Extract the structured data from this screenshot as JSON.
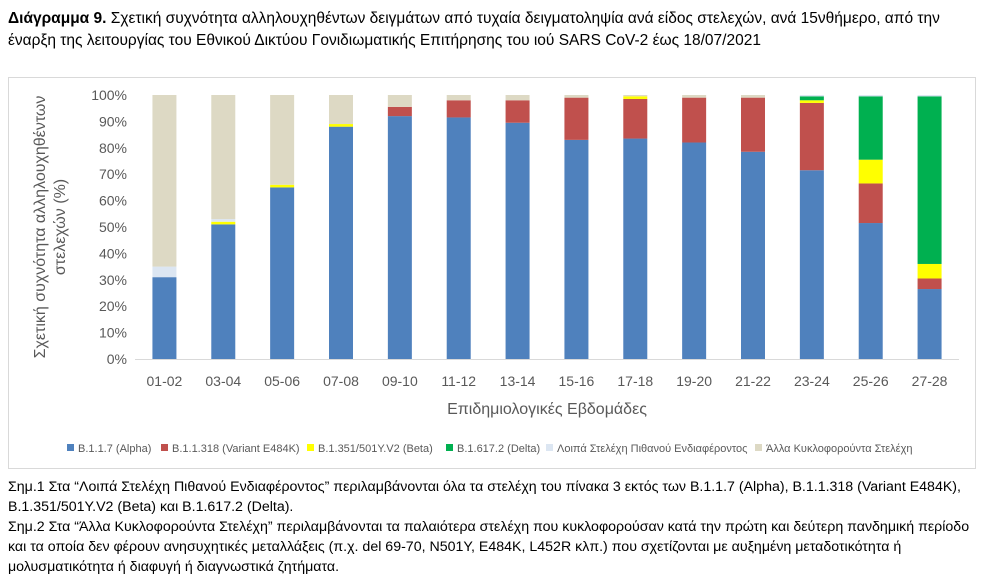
{
  "caption": {
    "label": "Διάγραμμα 9.",
    "text": " Σχετική συχνότητα αλληλουχηθέντων δειγμάτων από τυχαία δειγματοληψία ανά είδος στελεχών, ανά 15νθήμερο, από την έναρξη της λειτουργίας του Εθνικού Δικτύου Γονιδιωματικής Επιτήρησης του ιού SARS CoV-2 έως 18/07/2021"
  },
  "notes": {
    "note1": "Σημ.1 Στα “Λοιπά Στελέχη Πιθανού Ενδιαφέροντος” περιλαμβάνονται όλα τα στελέχη του πίνακα 3 εκτός των B.1.1.7 (Alpha), B.1.1.318 (Variant E484K), B.1.351/501Y.V2 (Beta) και B.1.617.2 (Delta).",
    "note2": "Σημ.2 Στα “Άλλα Κυκλοφορούντα Στελέχη” περιλαμβάνονται τα παλαιότερα στελέχη που κυκλοφορούσαν κατά την πρώτη και δεύτερη πανδημική περίοδο και τα οποία δεν φέρουν ανησυχητικές μεταλλάξεις (π.χ. del 69-70, N501Y, E484K, L452R κλπ.) που σχετίζονται με αυξημένη μεταδοτικότητα ή μολυσματικότητα ή διαφυγή ή διαγνωστικά ζητήματα."
  },
  "chart_data": {
    "type": "bar",
    "stacked": true,
    "xlabel": "Επιδημιολογικές Εβδομάδες",
    "ylabel": "Σχετική συχνότητα αλληλουχηθέντων στελεχών (%)",
    "ylim": [
      0,
      100
    ],
    "yticks": [
      "0%",
      "10%",
      "20%",
      "30%",
      "40%",
      "50%",
      "60%",
      "70%",
      "80%",
      "90%",
      "100%"
    ],
    "grid": false,
    "legend_position": "bottom",
    "categories": [
      "01-02",
      "03-04",
      "05-06",
      "07-08",
      "09-10",
      "11-12",
      "13-14",
      "15-16",
      "17-18",
      "19-20",
      "21-22",
      "23-24",
      "25-26",
      "27-28"
    ],
    "series": [
      {
        "name": "B.1.1.7 (Alpha)",
        "color": "#4f81bd",
        "values": [
          31,
          51,
          65,
          88,
          92,
          91.5,
          89.5,
          83,
          83.5,
          82,
          78.5,
          71.5,
          51.5,
          26.5
        ]
      },
      {
        "name": "B.1.1.318 (Variant E484K)",
        "color": "#c0504d",
        "values": [
          0,
          0,
          0,
          0,
          3.5,
          6.5,
          8.5,
          16,
          15,
          17,
          20.5,
          25.5,
          15,
          4
        ]
      },
      {
        "name": "B.1.351/501Y.V2 (Beta)",
        "color": "#ffff00",
        "values": [
          0,
          1,
          1,
          1,
          0,
          0,
          0,
          0,
          1,
          0,
          0,
          1,
          9,
          5.5
        ]
      },
      {
        "name": "B.1.617.2 (Delta)",
        "color": "#00b050",
        "values": [
          0,
          0,
          0,
          0,
          0,
          0,
          0,
          0,
          0,
          0,
          0,
          1.5,
          24,
          63.5
        ]
      },
      {
        "name": "Λοιπά Στελέχη Πιθανού Ενδιαφέροντος",
        "color": "#dce6f2",
        "values": [
          4,
          1,
          0,
          0,
          0,
          0,
          0,
          0,
          0,
          0,
          0,
          0.5,
          0.5,
          0.5
        ]
      },
      {
        "name": "Άλλα Κυκλοφορούντα Στελέχη",
        "color": "#ddd9c4",
        "values": [
          65,
          47,
          34,
          11,
          4.5,
          2,
          2,
          1,
          0.5,
          1,
          1,
          0,
          0,
          0
        ]
      }
    ]
  }
}
